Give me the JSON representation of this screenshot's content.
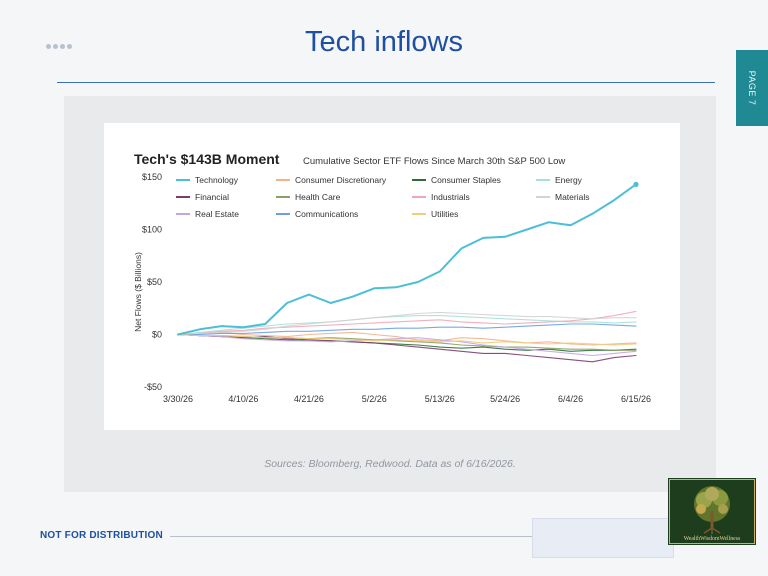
{
  "slide": {
    "title": "Tech inflows",
    "page_label": "PAGE 7",
    "source": "Sources: Bloomberg, Redwood. Data as of 6/16/2026.",
    "footer": "NOT FOR DISTRIBUTION",
    "logo_text": "WealthWisdomWellness"
  },
  "chart_data": {
    "type": "line",
    "title": "Tech's $143B Moment",
    "subtitle": "Cumulative Sector ETF Flows Since March 30th S&P 500 Low",
    "ylabel": "Net Flows ($ Billions)",
    "ylim": [
      -50,
      150
    ],
    "yticks": [
      150,
      100,
      50,
      0,
      -50
    ],
    "ytick_labels": [
      "$150",
      "$100",
      "$50",
      "$0",
      "-$50"
    ],
    "xticks": [
      "3/30/26",
      "4/10/26",
      "4/21/26",
      "5/2/26",
      "5/13/26",
      "5/24/26",
      "6/4/26",
      "6/15/26"
    ],
    "x": [
      "3/30/26",
      "4/3/26",
      "4/6/26",
      "4/10/26",
      "4/14/26",
      "4/17/26",
      "4/21/26",
      "4/24/26",
      "4/28/26",
      "5/2/26",
      "5/6/26",
      "5/9/26",
      "5/13/26",
      "5/17/26",
      "5/20/26",
      "5/24/26",
      "5/28/26",
      "5/31/26",
      "6/4/26",
      "6/8/26",
      "6/11/26",
      "6/15/26"
    ],
    "grid": false,
    "legend_position": "top",
    "series": [
      {
        "name": "Technology",
        "color": "#4bbfd6",
        "values": [
          0,
          5,
          8,
          7,
          10,
          30,
          38,
          30,
          36,
          44,
          45,
          50,
          60,
          82,
          92,
          93,
          100,
          107,
          104,
          115,
          128,
          143
        ]
      },
      {
        "name": "Consumer Discretionary",
        "color": "#f2b28a",
        "values": [
          0,
          1,
          2,
          0,
          -1,
          -2,
          0,
          1,
          2,
          0,
          -2,
          -5,
          -6,
          -3,
          -4,
          -6,
          -8,
          -7,
          -9,
          -10,
          -9,
          -8
        ]
      },
      {
        "name": "Consumer Staples",
        "color": "#2f6b3a",
        "values": [
          0,
          -1,
          -2,
          -3,
          -4,
          -5,
          -6,
          -6,
          -7,
          -8,
          -9,
          -10,
          -12,
          -13,
          -12,
          -14,
          -15,
          -14,
          -16,
          -15,
          -15,
          -14
        ]
      },
      {
        "name": "Energy",
        "color": "#a7dfdc",
        "values": [
          0,
          2,
          4,
          6,
          8,
          10,
          11,
          12,
          14,
          16,
          17,
          18,
          18,
          17,
          16,
          15,
          14,
          13,
          12,
          12,
          11,
          12
        ]
      },
      {
        "name": "Financial",
        "color": "#7d3b6e",
        "values": [
          0,
          -1,
          -2,
          -3,
          -2,
          -4,
          -5,
          -6,
          -7,
          -8,
          -10,
          -12,
          -14,
          -16,
          -18,
          -18,
          -20,
          -22,
          -24,
          -26,
          -22,
          -20
        ]
      },
      {
        "name": "Health Care",
        "color": "#8aa062",
        "values": [
          0,
          -1,
          -1,
          -2,
          -3,
          -3,
          -4,
          -3,
          -4,
          -5,
          -6,
          -7,
          -8,
          -10,
          -11,
          -12,
          -12,
          -13,
          -14,
          -14,
          -15,
          -15
        ]
      },
      {
        "name": "Industrials",
        "color": "#f0a7b8",
        "values": [
          0,
          1,
          3,
          4,
          6,
          7,
          8,
          9,
          10,
          11,
          12,
          13,
          14,
          12,
          11,
          10,
          11,
          12,
          13,
          15,
          18,
          22
        ]
      },
      {
        "name": "Materials",
        "color": "#d3d3cf",
        "values": [
          0,
          1,
          2,
          3,
          5,
          8,
          10,
          12,
          14,
          16,
          18,
          20,
          21,
          20,
          19,
          18,
          17,
          17,
          16,
          15,
          16,
          16
        ]
      },
      {
        "name": "Real Estate",
        "color": "#c2a6e3",
        "values": [
          0,
          -1,
          -2,
          -4,
          -5,
          -6,
          -6,
          -7,
          -6,
          -5,
          -4,
          -3,
          -5,
          -7,
          -10,
          -12,
          -14,
          -16,
          -18,
          -20,
          -18,
          -16
        ]
      },
      {
        "name": "Communications",
        "color": "#6a9ee8",
        "values": [
          0,
          0,
          1,
          1,
          2,
          3,
          3,
          4,
          5,
          5,
          6,
          6,
          7,
          7,
          6,
          7,
          8,
          9,
          10,
          10,
          9,
          8
        ]
      },
      {
        "name": "Utilities",
        "color": "#f2cc7c",
        "values": [
          0,
          -1,
          -1,
          -2,
          -3,
          -3,
          -4,
          -4,
          -5,
          -6,
          -5,
          -6,
          -7,
          -6,
          -8,
          -7,
          -8,
          -9,
          -8,
          -9,
          -10,
          -9
        ]
      }
    ]
  }
}
